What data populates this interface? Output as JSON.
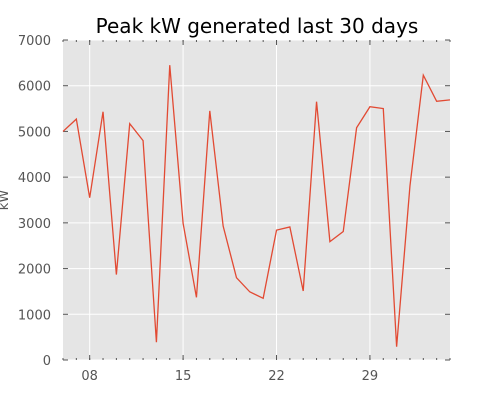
{
  "chart_data": {
    "type": "line",
    "title": "Peak kW generated last 30 days",
    "xlabel": "",
    "ylabel": "kW",
    "x_tick_labels": [
      "08",
      "15",
      "22",
      "29"
    ],
    "x_tick_days": [
      8,
      15,
      22,
      29
    ],
    "y_tick_labels": [
      "0",
      "1000",
      "2000",
      "3000",
      "4000",
      "5000",
      "6000",
      "7000"
    ],
    "ylim": [
      0,
      7000
    ],
    "xlim": [
      6,
      35
    ],
    "grid": true,
    "background_color": "#e5e5e5",
    "grid_color": "#ffffff",
    "series": [
      {
        "color": "#e24a33",
        "x": [
          6,
          7,
          8,
          9,
          10,
          11,
          12,
          13,
          14,
          15,
          16,
          17,
          18,
          19,
          20,
          21,
          22,
          23,
          24,
          25,
          26,
          27,
          28,
          29,
          30,
          31,
          32,
          33,
          34,
          35
        ],
        "values": [
          5000,
          5270,
          3550,
          5430,
          1870,
          5170,
          4800,
          390,
          6450,
          2990,
          1370,
          5450,
          2930,
          1800,
          1490,
          1350,
          2840,
          2910,
          1510,
          5650,
          2590,
          2810,
          5080,
          5540,
          5500,
          290,
          3810,
          6230,
          5660,
          5690
        ]
      }
    ]
  }
}
